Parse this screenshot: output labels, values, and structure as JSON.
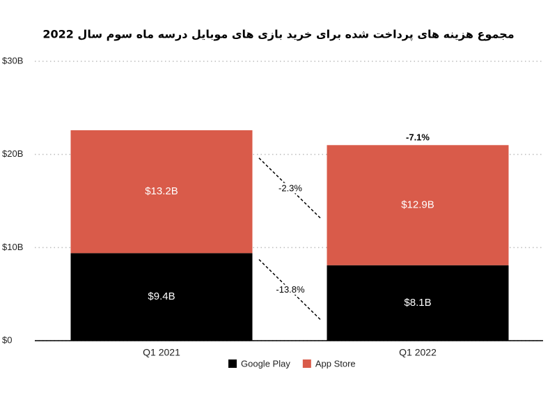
{
  "chart_data": {
    "type": "stacked_bar",
    "title": "مجموع هزینه های پرداخت شده برای خرید بازی های موبایل درسه ماه سوم سال 2022",
    "categories": [
      "Q1 2021",
      "Q1 2022"
    ],
    "series": [
      {
        "name": "Google Play",
        "color": "#000000",
        "values": [
          9.4,
          8.1
        ],
        "value_labels": [
          "$9.4B",
          "$8.1B"
        ],
        "change_label": "-13.8%"
      },
      {
        "name": "App Store",
        "color": "#d95b4a",
        "values": [
          13.2,
          12.9
        ],
        "value_labels": [
          "$13.2B",
          "$12.9B"
        ],
        "change_label": "-2.3%"
      }
    ],
    "total_change_label": "-7.1%",
    "ylim": [
      0,
      30
    ],
    "yticks": [
      {
        "value": 0,
        "label": "$0"
      },
      {
        "value": 10,
        "label": "$10B"
      },
      {
        "value": 20,
        "label": "$20B"
      },
      {
        "value": 30,
        "label": "$30B"
      }
    ],
    "grid": true,
    "legend": "bottom"
  }
}
